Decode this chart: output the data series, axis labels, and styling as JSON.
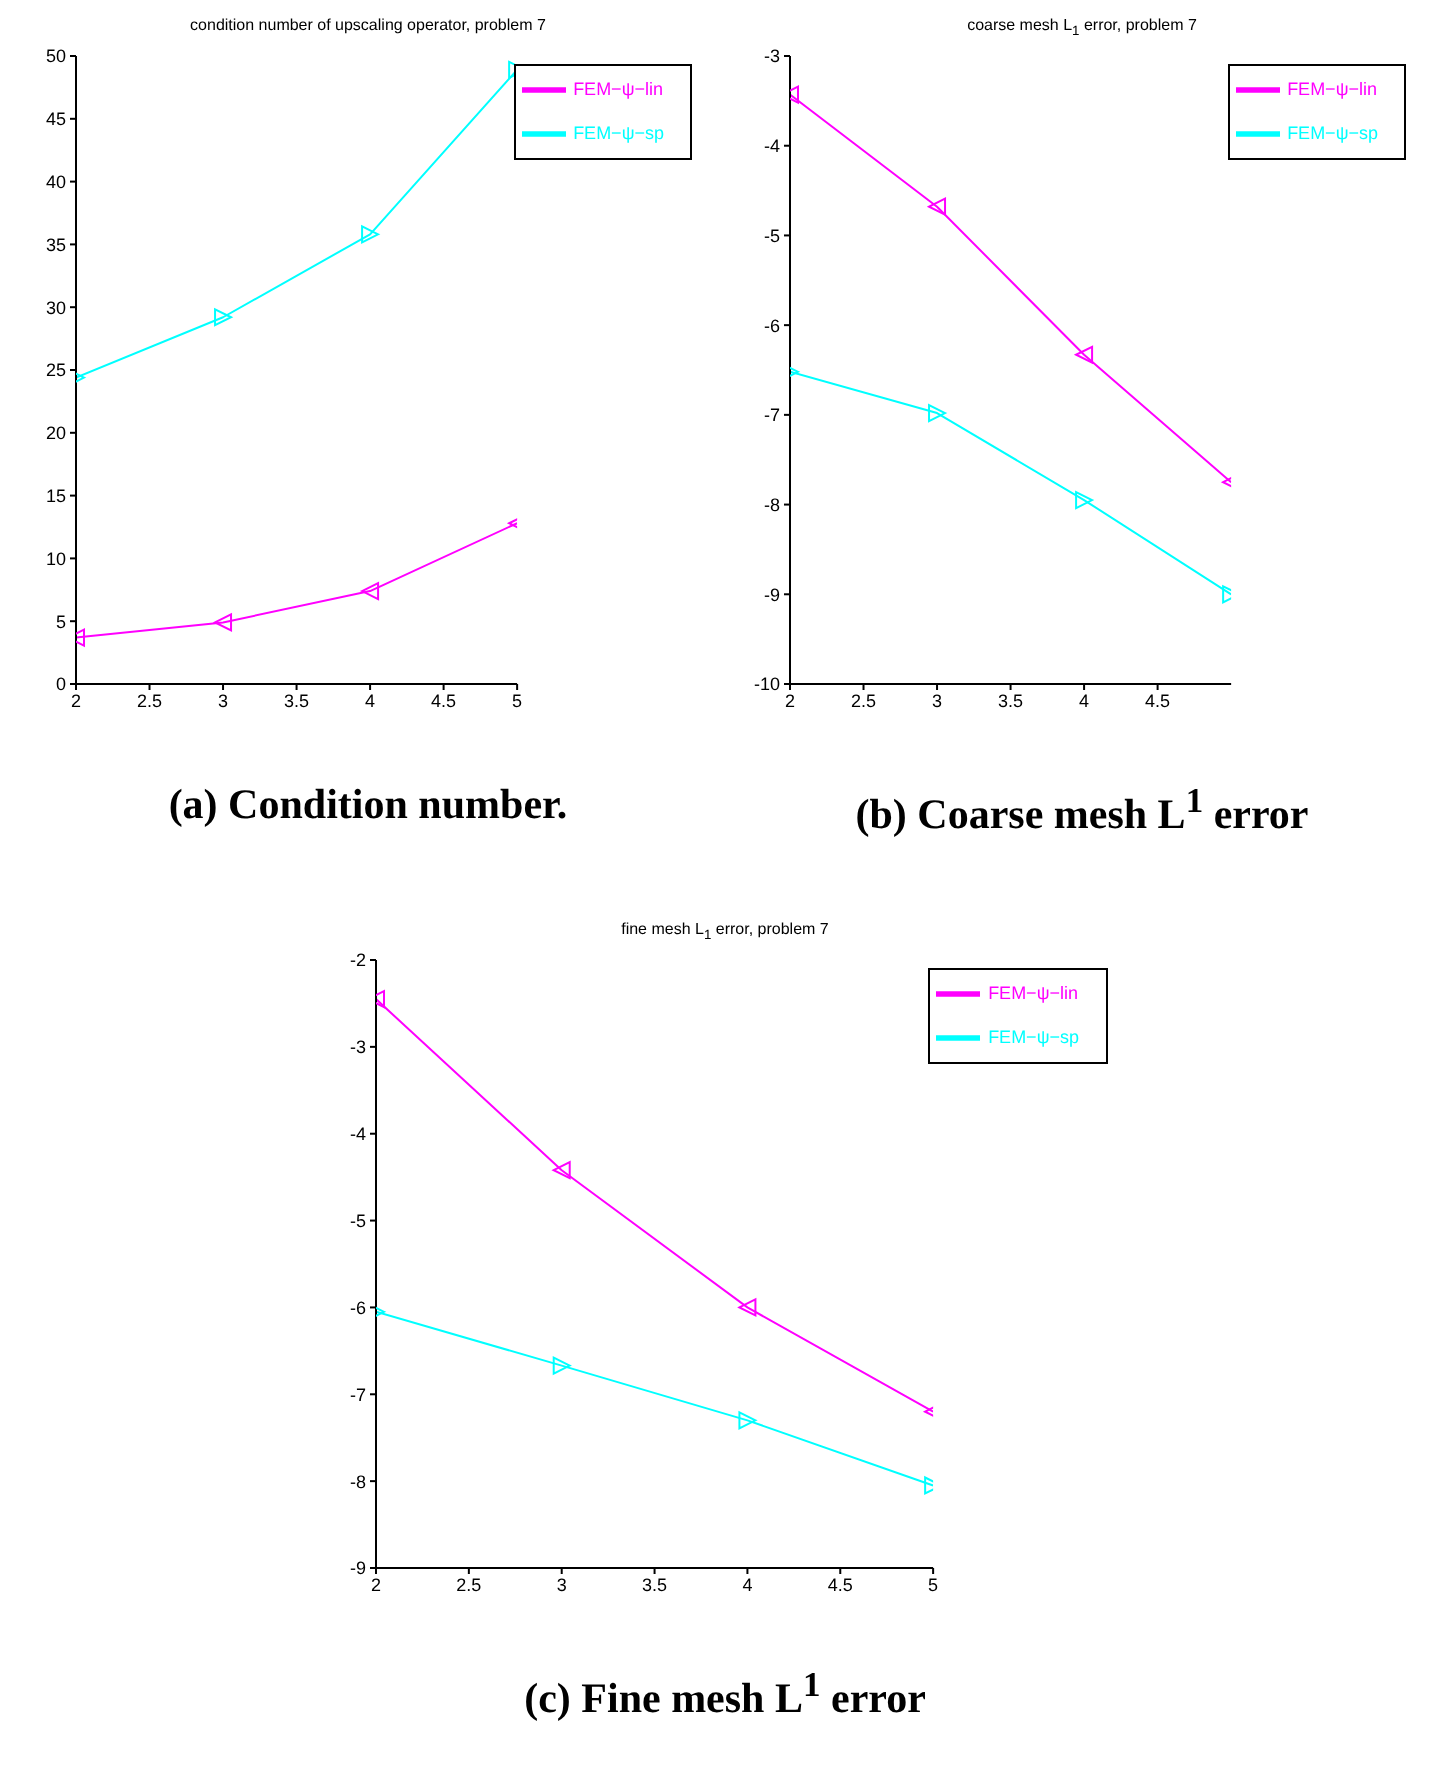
{
  "chart_data": [
    {
      "type": "line",
      "title": "condition number of upscaling operator, problem 7",
      "annotations": [
        "(a) Condition number."
      ],
      "x": [
        2,
        3,
        4,
        5
      ],
      "xlim": [
        2,
        5
      ],
      "xticks": [
        2,
        2.5,
        3,
        3.5,
        4,
        4.5,
        5
      ],
      "ylim": [
        0,
        50
      ],
      "yticks": [
        0,
        5,
        10,
        15,
        20,
        25,
        30,
        35,
        40,
        45,
        50
      ],
      "legend": "top right",
      "grid": false,
      "marker": "triangle",
      "line_style": "solid",
      "series": [
        {
          "name": "FEM−ψ−lin",
          "color": "#ff00ff",
          "values": [
            3.7,
            4.9,
            7.4,
            12.8
          ]
        },
        {
          "name": "FEM−ψ−sp",
          "color": "#00ffff",
          "values": [
            24.4,
            29.2,
            35.8,
            48.9
          ]
        }
      ]
    },
    {
      "type": "line",
      "title": "coarse mesh L$_{1}$ error, problem 7",
      "annotations": [
        "(b) Coarse mesh L$^{1}$ error"
      ],
      "x": [
        2,
        3,
        4,
        5
      ],
      "xlim": [
        2,
        5
      ],
      "xticks": [
        2,
        2.5,
        3,
        3.5,
        4,
        4.5
      ],
      "ylim": [
        -10,
        -3
      ],
      "yticks": [
        -10,
        -9,
        -8,
        -7,
        -6,
        -5,
        -4,
        -3
      ],
      "legend": "top right",
      "grid": false,
      "marker": "triangle",
      "line_style": "solid",
      "series": [
        {
          "name": "FEM−ψ−lin",
          "color": "#ff00ff",
          "values": [
            -3.43,
            -4.68,
            -6.33,
            -7.75
          ]
        },
        {
          "name": "FEM−ψ−sp",
          "color": "#00ffff",
          "values": [
            -6.52,
            -6.98,
            -7.95,
            -9.0
          ]
        }
      ]
    },
    {
      "type": "line",
      "title": "fine mesh L$_{1}$ error, problem 7",
      "annotations": [
        "(c) Fine mesh L$^{1}$ error"
      ],
      "x": [
        2,
        3,
        4,
        5
      ],
      "xlim": [
        2,
        5
      ],
      "xticks": [
        2,
        2.5,
        3,
        3.5,
        4,
        4.5,
        5
      ],
      "ylim": [
        -9,
        -2
      ],
      "yticks": [
        -9,
        -8,
        -7,
        -6,
        -5,
        -4,
        -3,
        -2
      ],
      "legend": "top right",
      "grid": false,
      "marker": "triangle",
      "line_style": "solid",
      "series": [
        {
          "name": "FEM−ψ−lin",
          "color": "#ff00ff",
          "values": [
            -2.45,
            -4.42,
            -6.0,
            -7.2
          ]
        },
        {
          "name": "FEM−ψ−sp",
          "color": "#00ffff",
          "values": [
            -6.05,
            -6.67,
            -7.3,
            -8.05
          ]
        }
      ]
    }
  ]
}
